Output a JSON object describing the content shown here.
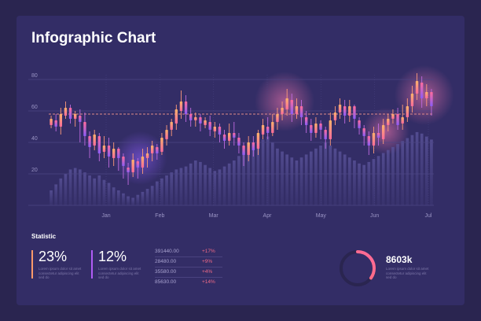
{
  "title": "Infographic Chart",
  "colors": {
    "background": "#2a2550",
    "panel": "#332d66",
    "accent_orange": "#ff9a6a",
    "accent_pink": "#ff6b9c",
    "accent_purple": "#8b5cf6",
    "volume_bar": "#4b4580",
    "grid": "#4d4685",
    "dashed_line": "#e08a8a"
  },
  "chart_data": {
    "type": "candlestick",
    "title": "Infographic Chart",
    "x_ticks": [
      "Jan",
      "Feb",
      "Mar",
      "Apr",
      "May",
      "Jun",
      "Jul"
    ],
    "y_ticks": [
      20,
      40,
      60,
      80
    ],
    "ylim": [
      0,
      90
    ],
    "grid": true,
    "reference_line": 58,
    "candles": [
      [
        51,
        55,
        49,
        57
      ],
      [
        54,
        50,
        47,
        58
      ],
      [
        50,
        58,
        45,
        62
      ],
      [
        57,
        62,
        55,
        66
      ],
      [
        62,
        55,
        52,
        64
      ],
      [
        55,
        58,
        50,
        60
      ],
      [
        57,
        53,
        40,
        61
      ],
      [
        53,
        44,
        38,
        59
      ],
      [
        44,
        37,
        30,
        47
      ],
      [
        38,
        45,
        35,
        48
      ],
      [
        44,
        33,
        28,
        46
      ],
      [
        34,
        38,
        30,
        44
      ],
      [
        38,
        31,
        24,
        43
      ],
      [
        30,
        36,
        25,
        40
      ],
      [
        36,
        30,
        22,
        37
      ],
      [
        31,
        25,
        17,
        33
      ],
      [
        24,
        21,
        13,
        27
      ],
      [
        21,
        29,
        18,
        33
      ],
      [
        28,
        24,
        17,
        30
      ],
      [
        24,
        31,
        20,
        36
      ],
      [
        30,
        33,
        24,
        37
      ],
      [
        33,
        38,
        28,
        41
      ],
      [
        37,
        33,
        29,
        39
      ],
      [
        34,
        43,
        32,
        46
      ],
      [
        42,
        48,
        38,
        51
      ],
      [
        48,
        53,
        44,
        55
      ],
      [
        52,
        61,
        48,
        64
      ],
      [
        60,
        66,
        55,
        73
      ],
      [
        66,
        58,
        53,
        70
      ],
      [
        58,
        54,
        50,
        62
      ],
      [
        54,
        56,
        50,
        59
      ],
      [
        56,
        52,
        47,
        58
      ],
      [
        51,
        54,
        49,
        56
      ],
      [
        53,
        48,
        44,
        57
      ],
      [
        47,
        50,
        43,
        53
      ],
      [
        50,
        45,
        40,
        52
      ],
      [
        45,
        41,
        36,
        48
      ],
      [
        41,
        46,
        38,
        52
      ],
      [
        46,
        43,
        38,
        53
      ],
      [
        43,
        38,
        33,
        46
      ],
      [
        38,
        32,
        25,
        40
      ],
      [
        32,
        40,
        28,
        44
      ],
      [
        40,
        35,
        31,
        44
      ],
      [
        36,
        46,
        32,
        48
      ],
      [
        45,
        51,
        42,
        55
      ],
      [
        50,
        46,
        42,
        56
      ],
      [
        46,
        53,
        44,
        58
      ],
      [
        53,
        58,
        48,
        62
      ],
      [
        58,
        62,
        54,
        66
      ],
      [
        61,
        68,
        57,
        74
      ],
      [
        67,
        58,
        53,
        71
      ],
      [
        58,
        63,
        55,
        68
      ],
      [
        63,
        56,
        51,
        67
      ],
      [
        56,
        51,
        46,
        60
      ],
      [
        51,
        46,
        41,
        55
      ],
      [
        46,
        52,
        43,
        56
      ],
      [
        52,
        48,
        42,
        54
      ],
      [
        48,
        42,
        36,
        50
      ],
      [
        42,
        54,
        38,
        59
      ],
      [
        54,
        59,
        51,
        63
      ],
      [
        59,
        64,
        55,
        68
      ],
      [
        63,
        57,
        52,
        67
      ],
      [
        57,
        63,
        53,
        67
      ],
      [
        63,
        55,
        49,
        64
      ],
      [
        54,
        49,
        45,
        56
      ],
      [
        49,
        44,
        38,
        51
      ],
      [
        44,
        38,
        32,
        47
      ],
      [
        38,
        46,
        33,
        50
      ],
      [
        46,
        43,
        38,
        52
      ],
      [
        42,
        51,
        39,
        55
      ],
      [
        51,
        55,
        47,
        58
      ],
      [
        55,
        58,
        52,
        61
      ],
      [
        58,
        51,
        48,
        62
      ],
      [
        52,
        56,
        48,
        64
      ],
      [
        56,
        63,
        53,
        68
      ],
      [
        63,
        71,
        59,
        76
      ],
      [
        71,
        79,
        67,
        84
      ],
      [
        78,
        68,
        62,
        82
      ],
      [
        68,
        72,
        63,
        77
      ],
      [
        72,
        63,
        57,
        74
      ]
    ],
    "volumes": [
      10,
      14,
      18,
      21,
      24,
      25,
      24,
      22,
      20,
      18,
      20,
      17,
      15,
      12,
      10,
      8,
      6,
      5,
      7,
      9,
      11,
      13,
      16,
      18,
      20,
      22,
      24,
      25,
      26,
      28,
      30,
      29,
      27,
      25,
      23,
      24,
      26,
      28,
      30,
      33,
      36,
      38,
      40,
      42,
      44,
      46,
      42,
      38,
      36,
      34,
      32,
      30,
      32,
      34,
      36,
      38,
      40,
      42,
      40,
      38,
      36,
      34,
      32,
      30,
      28,
      27,
      29,
      31,
      33,
      35,
      37,
      39,
      41,
      43,
      45,
      47,
      49,
      48,
      46,
      44
    ],
    "highlight_index": 19
  },
  "statistic": {
    "heading": "Statistic",
    "items": [
      {
        "value": "23%",
        "desc": "Lorem ipsum dolor sit amet consectetur adipiscing elit sed do",
        "color": "#ff9a6a"
      },
      {
        "value": "12%",
        "desc": "Lorem ipsum dolor sit amet consectetur adipiscing elit sed do",
        "color": "#b05cf6"
      }
    ],
    "rows": [
      {
        "num": "391440.00",
        "chg": "+17%"
      },
      {
        "num": "28480.00",
        "chg": "+9%"
      },
      {
        "num": "35580.00",
        "chg": "+4%"
      },
      {
        "num": "85630.00",
        "chg": "+14%"
      }
    ]
  },
  "donut": {
    "value": "8603k",
    "fraction": 0.35,
    "desc": "Lorem ipsum dolor sit amet consectetur adipiscing elit sed do"
  }
}
